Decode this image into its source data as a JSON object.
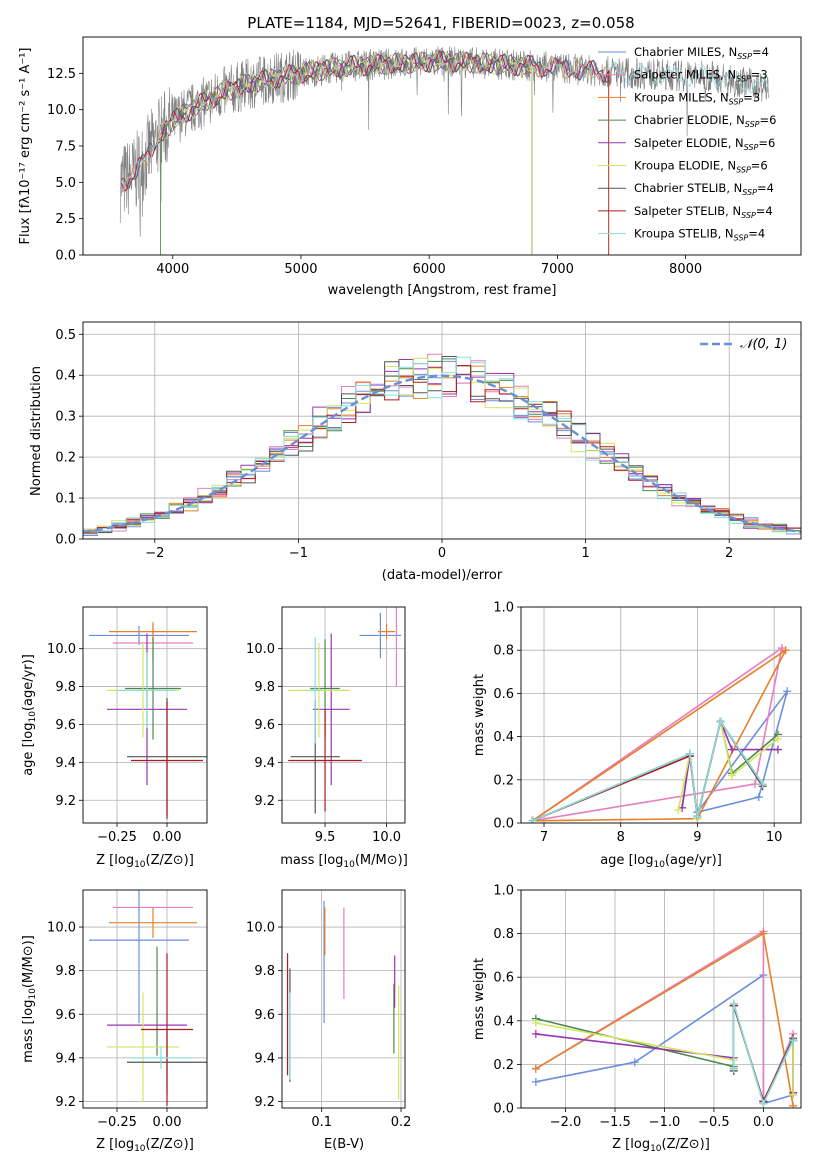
{
  "colors": {
    "chabrier_miles": "#6a8fe0",
    "salpeter_miles": "#e87ec0",
    "kroupa_miles": "#e8802a",
    "chabrier_elodie": "#4c8a4c",
    "salpeter_elodie": "#9a35b0",
    "kroupa_elodie": "#d4e660",
    "chabrier_stelib": "#555555",
    "salpeter_stelib": "#aa1c1c",
    "kroupa_stelib": "#88dde0",
    "data": "#808080",
    "normal": "#6a8fd8"
  },
  "chart_data": [
    {
      "id": "spectrum",
      "type": "line",
      "title": "PLATE=1184, MJD=52641, FIBERID=0023, z=0.058",
      "xlabel": "wavelength [Angstrom, rest frame]",
      "ylabel": "Flux [fλ10⁻¹⁷ erg cm⁻² s⁻¹ A⁻¹]",
      "xlim": [
        3300,
        8900
      ],
      "ylim": [
        0,
        15
      ],
      "xticks": [
        4000,
        5000,
        6000,
        7000,
        8000
      ],
      "yticks": [
        0.0,
        2.5,
        5.0,
        7.5,
        10.0,
        12.5
      ],
      "ytick_labels": [
        "0.0",
        "2.5",
        "5.0",
        "7.5",
        "10.0",
        "12.5"
      ],
      "continuum": {
        "x": [
          3600,
          3700,
          3800,
          3900,
          4000,
          4100,
          4200,
          4400,
          4600,
          4800,
          5000,
          5200,
          5400,
          5600,
          5800,
          6000,
          6200,
          6400,
          6600,
          6800,
          7000,
          7200,
          7400,
          7600,
          7800,
          8000,
          8200,
          8400,
          8600
        ],
        "y": [
          5.0,
          5.5,
          6.8,
          8.3,
          9.2,
          9.8,
          10.3,
          11.2,
          11.8,
          12.2,
          12.5,
          12.8,
          13.0,
          13.1,
          13.2,
          13.3,
          13.3,
          13.2,
          13.1,
          13.0,
          12.9,
          12.7,
          12.6,
          12.5,
          12.4,
          12.3,
          12.3,
          12.0,
          11.5
        ]
      },
      "legend": [
        {
          "label": "Chabrier MILES, N",
          "sub": "SSP",
          "eq": "=4",
          "color_key": "chabrier_miles"
        },
        {
          "label": "Salpeter MILES, N",
          "sub": "SSP",
          "eq": "=3",
          "color_key": "salpeter_miles"
        },
        {
          "label": "Kroupa MILES, N",
          "sub": "SSP",
          "eq": "=3",
          "color_key": "kroupa_miles"
        },
        {
          "label": "Chabrier ELODIE, N",
          "sub": "SSP",
          "eq": "=6",
          "color_key": "chabrier_elodie"
        },
        {
          "label": "Salpeter ELODIE, N",
          "sub": "SSP",
          "eq": "=6",
          "color_key": "salpeter_elodie"
        },
        {
          "label": "Kroupa ELODIE, N",
          "sub": "SSP",
          "eq": "=6",
          "color_key": "kroupa_elodie"
        },
        {
          "label": "Chabrier STELIB, N",
          "sub": "SSP",
          "eq": "=4",
          "color_key": "chabrier_stelib"
        },
        {
          "label": "Salpeter STELIB, N",
          "sub": "SSP",
          "eq": "=4",
          "color_key": "salpeter_stelib"
        },
        {
          "label": "Kroupa STELIB, N",
          "sub": "SSP",
          "eq": "=4",
          "color_key": "kroupa_stelib"
        }
      ],
      "legend_placement": "right"
    },
    {
      "id": "residuals",
      "type": "step",
      "xlabel": "(data-model)/error",
      "ylabel": "Normed distribution",
      "xlim": [
        -2.5,
        2.5
      ],
      "ylim": [
        0,
        0.53
      ],
      "xticks": [
        -2,
        -1,
        0,
        1,
        2
      ],
      "xtick_labels": [
        "−2",
        "−1",
        "0",
        "1",
        "2"
      ],
      "yticks": [
        0.0,
        0.1,
        0.2,
        0.3,
        0.4,
        0.5
      ],
      "ytick_labels": [
        "0.0",
        "0.1",
        "0.2",
        "0.3",
        "0.4",
        "0.5"
      ],
      "grid": true,
      "bin_width": 0.1,
      "legend": "𝒩(0, 1)",
      "legend_placement": "top-right"
    },
    {
      "id": "age_metal",
      "type": "errorbar",
      "xlabel_pre": "Z [log",
      "xlabel_sub": "10",
      "xlabel_post": "(Z/Z⊙)]",
      "ylabel_pre": "age  [log",
      "ylabel_sub": "10",
      "ylabel_post": "(age/yr)]",
      "xlim": [
        -0.42,
        0.2
      ],
      "ylim": [
        9.08,
        10.22
      ],
      "xticks": [
        -0.25,
        0.0
      ],
      "xtick_labels": [
        "−0.25",
        "0.00"
      ],
      "yticks": [
        9.2,
        9.4,
        9.6,
        9.8,
        10.0
      ],
      "ytick_labels": [
        "9.2",
        "9.4",
        "9.6",
        "9.8",
        "10.0"
      ],
      "points": [
        {
          "c": "chabrier_miles",
          "x": -0.14,
          "xe": 0.25,
          "y": 10.07,
          "ye": 0.05
        },
        {
          "c": "salpeter_miles",
          "x": -0.07,
          "xe": 0.2,
          "y": 10.03,
          "ye": 0.1
        },
        {
          "c": "kroupa_miles",
          "x": -0.07,
          "xe": 0.22,
          "y": 10.09,
          "ye": 0.05
        },
        {
          "c": "chabrier_elodie",
          "x": -0.07,
          "xe": 0.14,
          "y": 9.79,
          "ye": 0.27
        },
        {
          "c": "salpeter_elodie",
          "x": -0.1,
          "xe": 0.2,
          "y": 9.68,
          "ye": 0.4
        },
        {
          "c": "kroupa_elodie",
          "x": -0.12,
          "xe": 0.18,
          "y": 9.78,
          "ye": 0.25
        },
        {
          "c": "chabrier_stelib",
          "x": 0.0,
          "xe": 0.2,
          "y": 9.43,
          "ye": 0.31
        },
        {
          "c": "salpeter_stelib",
          "x": 0.0,
          "xe": 0.18,
          "y": 9.41,
          "ye": 0.31
        },
        {
          "c": "kroupa_stelib",
          "x": -0.1,
          "xe": 0.14,
          "y": 9.78,
          "ye": 0.2
        }
      ]
    },
    {
      "id": "age_mass",
      "type": "errorbar",
      "xlabel_pre": "mass [log",
      "xlabel_sub": "10",
      "xlabel_post": "(M/M⊙)]",
      "ylabel_pre": "",
      "ylabel_sub": "",
      "ylabel_post": "",
      "xlim": [
        9.15,
        10.15
      ],
      "ylim": [
        9.08,
        10.22
      ],
      "xticks": [
        9.5,
        10.0
      ],
      "xtick_labels": [
        "9.5",
        "10.0"
      ],
      "yticks": [
        9.2,
        9.4,
        9.6,
        9.8,
        10.0
      ],
      "ytick_labels": [
        "9.2",
        "9.4",
        "9.6",
        "9.8",
        "10.0"
      ],
      "points": [
        {
          "c": "chabrier_miles",
          "x": 9.95,
          "xe": 0.17,
          "y": 10.07,
          "ye": 0.12
        },
        {
          "c": "salpeter_miles",
          "x": 10.08,
          "xe": 0.0,
          "y": 10.02,
          "ye": 0.22
        },
        {
          "c": "kroupa_miles",
          "x": 10.0,
          "xe": 0.07,
          "y": 10.09,
          "ye": 0.04
        },
        {
          "c": "chabrier_elodie",
          "x": 9.5,
          "xe": 0.12,
          "y": 9.79,
          "ye": 0.26
        },
        {
          "c": "salpeter_elodie",
          "x": 9.55,
          "xe": 0.15,
          "y": 9.68,
          "ye": 0.4
        },
        {
          "c": "kroupa_elodie",
          "x": 9.45,
          "xe": 0.25,
          "y": 9.78,
          "ye": 0.25
        },
        {
          "c": "chabrier_stelib",
          "x": 9.42,
          "xe": 0.2,
          "y": 9.43,
          "ye": 0.3
        },
        {
          "c": "salpeter_stelib",
          "x": 9.5,
          "xe": 0.3,
          "y": 9.41,
          "ye": 0.27
        },
        {
          "c": "kroupa_stelib",
          "x": 9.42,
          "xe": 0.05,
          "y": 9.78,
          "ye": 0.28
        }
      ]
    },
    {
      "id": "weight_age",
      "type": "line",
      "xlabel_pre": "age  [log",
      "xlabel_sub": "10",
      "xlabel_post": "(age/yr)]",
      "ylabel": "mass weight",
      "xlim": [
        6.7,
        10.35
      ],
      "ylim": [
        0.0,
        1.0
      ],
      "xticks": [
        7,
        8,
        9,
        10
      ],
      "xtick_labels": [
        "7",
        "8",
        "9",
        "10"
      ],
      "yticks": [
        0.0,
        0.2,
        0.4,
        0.6,
        0.8,
        1.0
      ],
      "ytick_labels": [
        "0.0",
        "0.2",
        "0.4",
        "0.6",
        "0.8",
        "1.0"
      ],
      "grid": true,
      "series": [
        {
          "c": "chabrier_miles",
          "x": [
            9.0,
            9.8,
            10.17,
            9.0
          ],
          "y": [
            0.05,
            0.12,
            0.61,
            0.05
          ]
        },
        {
          "c": "salpeter_miles",
          "x": [
            6.85,
            9.75,
            10.1,
            6.85
          ],
          "y": [
            0.01,
            0.18,
            0.81,
            0.01
          ]
        },
        {
          "c": "kroupa_miles",
          "x": [
            6.85,
            9.0,
            10.15,
            6.85
          ],
          "y": [
            0.01,
            0.02,
            0.8,
            0.01
          ]
        },
        {
          "c": "chabrier_elodie",
          "x": [
            8.8,
            8.9,
            9.0,
            9.3,
            9.45,
            10.05
          ],
          "y": [
            0.07,
            0.32,
            0.03,
            0.47,
            0.23,
            0.41
          ]
        },
        {
          "c": "salpeter_elodie",
          "x": [
            8.8,
            8.9,
            9.0,
            9.3,
            9.45,
            10.05
          ],
          "y": [
            0.07,
            0.31,
            0.03,
            0.47,
            0.34,
            0.34
          ]
        },
        {
          "c": "kroupa_elodie",
          "x": [
            8.75,
            8.9,
            9.0,
            9.3,
            9.45,
            10.05
          ],
          "y": [
            0.06,
            0.32,
            0.02,
            0.47,
            0.22,
            0.39
          ]
        },
        {
          "c": "chabrier_stelib",
          "x": [
            6.85,
            8.9,
            9.0,
            9.3,
            9.85
          ],
          "y": [
            0.01,
            0.32,
            0.03,
            0.47,
            0.17
          ]
        },
        {
          "c": "salpeter_stelib",
          "x": [
            6.85,
            8.9,
            9.0,
            9.3,
            9.85
          ],
          "y": [
            0.01,
            0.31,
            0.03,
            0.47,
            0.18
          ]
        },
        {
          "c": "kroupa_stelib",
          "x": [
            6.85,
            8.9,
            9.0,
            9.3,
            9.85
          ],
          "y": [
            0.01,
            0.32,
            0.03,
            0.47,
            0.18
          ]
        }
      ]
    },
    {
      "id": "mass_metal",
      "type": "errorbar",
      "xlabel_pre": "Z [log",
      "xlabel_sub": "10",
      "xlabel_post": "(Z/Z⊙)]",
      "ylabel_pre": "mass [log",
      "ylabel_sub": "10",
      "ylabel_post": "(M/M⊙)]",
      "xlim": [
        -0.42,
        0.2
      ],
      "ylim": [
        9.17,
        10.17
      ],
      "xticks": [
        -0.25,
        0.0
      ],
      "xtick_labels": [
        "−0.25",
        "0.00"
      ],
      "yticks": [
        9.2,
        9.4,
        9.6,
        9.8,
        10.0
      ],
      "ytick_labels": [
        "9.2",
        "9.4",
        "9.6",
        "9.8",
        "10.0"
      ],
      "points": [
        {
          "c": "chabrier_miles",
          "x": -0.14,
          "xe": 0.25,
          "y": 9.94,
          "ye": 0.38
        },
        {
          "c": "salpeter_miles",
          "x": -0.07,
          "xe": 0.2,
          "y": 10.09,
          "ye": 0.0
        },
        {
          "c": "kroupa_miles",
          "x": -0.07,
          "xe": 0.22,
          "y": 10.02,
          "ye": 0.07
        },
        {
          "c": "chabrier_elodie",
          "x": -0.05,
          "xe": 0.0,
          "y": 9.66,
          "ye": 0.25
        },
        {
          "c": "salpeter_elodie",
          "x": -0.1,
          "xe": 0.2,
          "y": 9.55,
          "ye": 0.0
        },
        {
          "c": "kroupa_elodie",
          "x": -0.12,
          "xe": 0.18,
          "y": 9.45,
          "ye": 0.25
        },
        {
          "c": "chabrier_stelib",
          "x": 0.0,
          "xe": 0.2,
          "y": 9.38,
          "ye": 0.15
        },
        {
          "c": "salpeter_stelib",
          "x": 0.0,
          "xe": 0.13,
          "y": 9.53,
          "ye": 0.35
        },
        {
          "c": "kroupa_stelib",
          "x": -0.03,
          "xe": 0.15,
          "y": 9.4,
          "ye": 0.05
        }
      ]
    },
    {
      "id": "mass_ebv",
      "type": "errorbar",
      "xlabel_pre": "E(B-V)",
      "xlabel_sub": "",
      "xlabel_post": "",
      "ylabel_pre": "",
      "ylabel_sub": "",
      "ylabel_post": "",
      "xlim": [
        0.05,
        0.205
      ],
      "ylim": [
        9.17,
        10.17
      ],
      "xticks": [
        0.1,
        0.2
      ],
      "xtick_labels": [
        "0.1",
        "0.2"
      ],
      "yticks": [
        9.2,
        9.4,
        9.6,
        9.8,
        10.0
      ],
      "ytick_labels": [
        "9.2",
        "9.4",
        "9.6",
        "9.8",
        "10.0"
      ],
      "points": [
        {
          "c": "chabrier_miles",
          "x": 0.103,
          "xe": 0.0,
          "y": 9.84,
          "ye": 0.28
        },
        {
          "c": "salpeter_miles",
          "x": 0.128,
          "xe": 0.0,
          "y": 9.88,
          "ye": 0.21
        },
        {
          "c": "kroupa_miles",
          "x": 0.104,
          "xe": 0.0,
          "y": 9.98,
          "ye": 0.11
        },
        {
          "c": "chabrier_elodie",
          "x": 0.191,
          "xe": 0.0,
          "y": 9.58,
          "ye": 0.16
        },
        {
          "c": "salpeter_elodie",
          "x": 0.192,
          "xe": 0.0,
          "y": 9.75,
          "ye": 0.12
        },
        {
          "c": "kroupa_elodie",
          "x": 0.197,
          "xe": 0.0,
          "y": 9.47,
          "ye": 0.26
        },
        {
          "c": "chabrier_stelib",
          "x": 0.06,
          "xe": 0.0,
          "y": 9.55,
          "ye": 0.26
        },
        {
          "c": "salpeter_stelib",
          "x": 0.057,
          "xe": 0.0,
          "y": 9.6,
          "ye": 0.28
        },
        {
          "c": "kroupa_stelib",
          "x": 0.06,
          "xe": 0.0,
          "y": 9.5,
          "ye": 0.2
        }
      ]
    },
    {
      "id": "weight_metal",
      "type": "line",
      "xlabel_pre": "Z [log",
      "xlabel_sub": "10",
      "xlabel_post": "(Z/Z⊙)]",
      "ylabel": "mass weight",
      "xlim": [
        -2.45,
        0.38
      ],
      "ylim": [
        0.0,
        1.0
      ],
      "xticks": [
        -2.0,
        -1.5,
        -1.0,
        -0.5,
        0.0
      ],
      "xtick_labels": [
        "−2.0",
        "−1.5",
        "−1.0",
        "−0.5",
        "0.0"
      ],
      "yticks": [
        0.0,
        0.2,
        0.4,
        0.6,
        0.8,
        1.0
      ],
      "ytick_labels": [
        "0.0",
        "0.2",
        "0.4",
        "0.6",
        "0.8",
        "1.0"
      ],
      "grid": true,
      "series": [
        {
          "c": "chabrier_miles",
          "x": [
            -2.3,
            -1.3,
            0.0,
            0.0,
            0.3
          ],
          "y": [
            0.12,
            0.21,
            0.61,
            0.02,
            0.06
          ]
        },
        {
          "c": "salpeter_miles",
          "x": [
            -2.3,
            0.0,
            0.0,
            0.3
          ],
          "y": [
            0.18,
            0.81,
            0.02,
            0.34
          ]
        },
        {
          "c": "kroupa_miles",
          "x": [
            -2.3,
            0.0,
            0.3
          ],
          "y": [
            0.18,
            0.8,
            0.01
          ]
        },
        {
          "c": "chabrier_elodie",
          "x": [
            -2.3,
            -0.3,
            -0.3,
            0.0,
            0.3,
            0.3
          ],
          "y": [
            0.41,
            0.19,
            0.47,
            0.03,
            0.31,
            0.07
          ]
        },
        {
          "c": "salpeter_elodie",
          "x": [
            -2.3,
            -0.3,
            -0.3,
            0.0,
            0.3,
            0.3
          ],
          "y": [
            0.34,
            0.23,
            0.47,
            0.03,
            0.31,
            0.07
          ]
        },
        {
          "c": "kroupa_elodie",
          "x": [
            -2.3,
            -0.3,
            -0.3,
            0.0,
            0.3,
            0.3
          ],
          "y": [
            0.39,
            0.22,
            0.47,
            0.02,
            0.31,
            0.06
          ]
        },
        {
          "c": "chabrier_stelib",
          "x": [
            -0.3,
            -0.3,
            0.0,
            0.3
          ],
          "y": [
            0.17,
            0.47,
            0.03,
            0.32
          ]
        },
        {
          "c": "salpeter_stelib",
          "x": [
            -0.3,
            -0.3,
            0.0,
            0.3
          ],
          "y": [
            0.18,
            0.47,
            0.03,
            0.31
          ]
        },
        {
          "c": "kroupa_stelib",
          "x": [
            -0.3,
            -0.3,
            0.0,
            0.3
          ],
          "y": [
            0.18,
            0.48,
            0.02,
            0.31
          ]
        }
      ]
    }
  ]
}
